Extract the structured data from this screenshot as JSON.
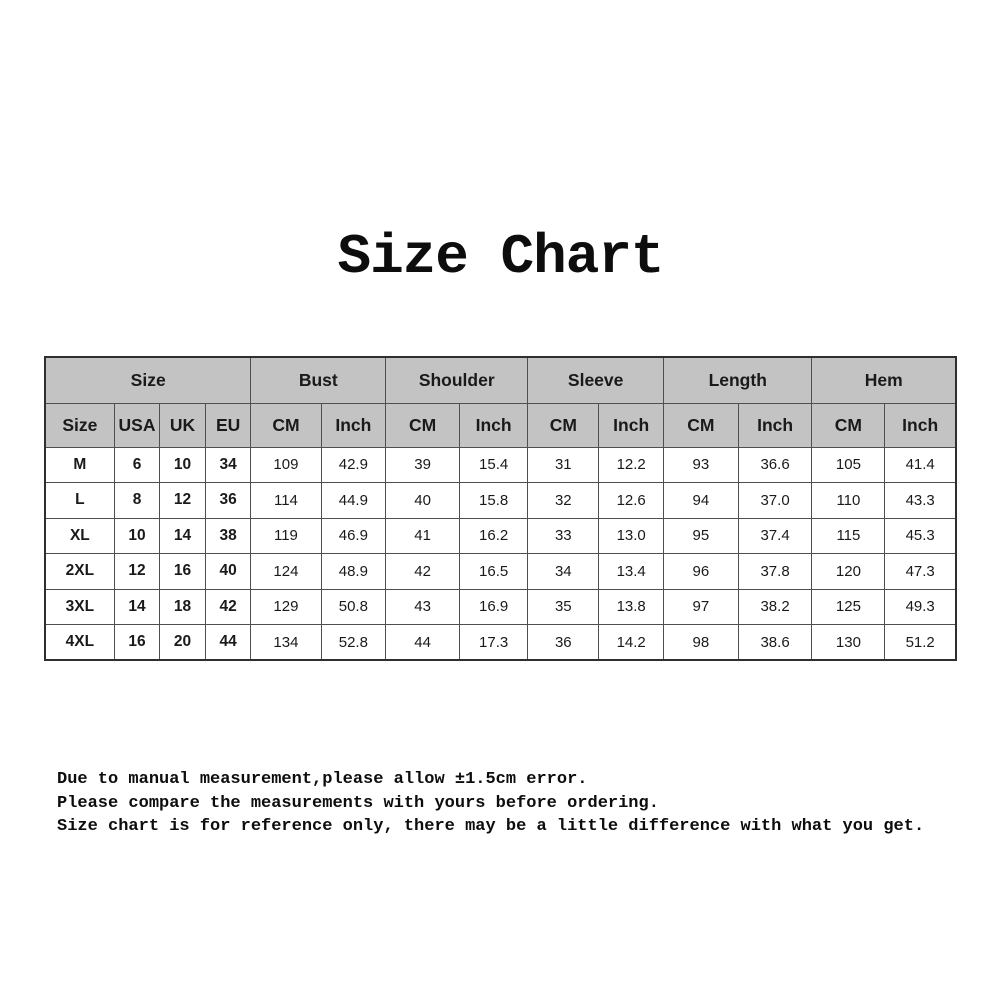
{
  "chart_data": {
    "type": "table",
    "title": "Size Chart",
    "column_groups": [
      {
        "label": "Size",
        "span": 4
      },
      {
        "label": "Bust",
        "span": 2
      },
      {
        "label": "Shoulder",
        "span": 2
      },
      {
        "label": "Sleeve",
        "span": 2
      },
      {
        "label": "Length",
        "span": 2
      },
      {
        "label": "Hem",
        "span": 2
      }
    ],
    "columns": [
      "Size",
      "USA",
      "UK",
      "EU",
      "CM",
      "Inch",
      "CM",
      "Inch",
      "CM",
      "Inch",
      "CM",
      "Inch",
      "CM",
      "Inch"
    ],
    "rows": [
      [
        "M",
        "6",
        "10",
        "34",
        "109",
        "42.9",
        "39",
        "15.4",
        "31",
        "12.2",
        "93",
        "36.6",
        "105",
        "41.4"
      ],
      [
        "L",
        "8",
        "12",
        "36",
        "114",
        "44.9",
        "40",
        "15.8",
        "32",
        "12.6",
        "94",
        "37.0",
        "110",
        "43.3"
      ],
      [
        "XL",
        "10",
        "14",
        "38",
        "119",
        "46.9",
        "41",
        "16.2",
        "33",
        "13.0",
        "95",
        "37.4",
        "115",
        "45.3"
      ],
      [
        "2XL",
        "12",
        "16",
        "40",
        "124",
        "48.9",
        "42",
        "16.5",
        "34",
        "13.4",
        "96",
        "37.8",
        "120",
        "47.3"
      ],
      [
        "3XL",
        "14",
        "18",
        "42",
        "129",
        "50.8",
        "43",
        "16.9",
        "35",
        "13.8",
        "97",
        "38.2",
        "125",
        "49.3"
      ],
      [
        "4XL",
        "16",
        "20",
        "44",
        "134",
        "52.8",
        "44",
        "17.3",
        "36",
        "14.2",
        "98",
        "38.6",
        "130",
        "51.2"
      ]
    ],
    "notes": [
      "Due to manual measurement,please allow ±1.5cm error.",
      "Please compare the measurements with yours before ordering.",
      "Size chart is for reference only, there may be a little difference with what you get."
    ],
    "layout_hints": {
      "header_rows": 2,
      "size_columns_bold": true,
      "grid": "on"
    }
  },
  "colors": {
    "header_bg": "#c3c3c3",
    "border": "#4f4f4f",
    "outer_border": "#2f2f2f",
    "text": "#1a1a1a",
    "background": "#ffffff"
  }
}
